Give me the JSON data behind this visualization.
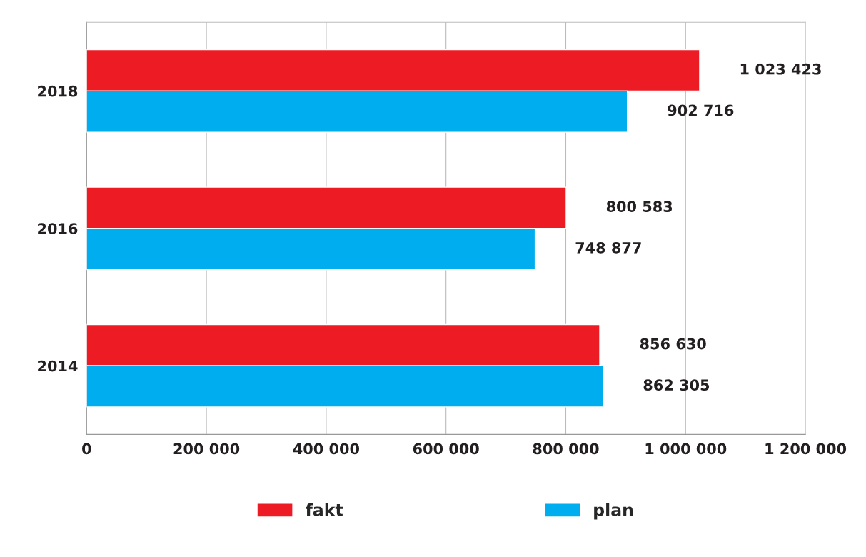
{
  "chart_data": {
    "type": "bar",
    "orientation": "horizontal",
    "categories": [
      "2018",
      "2016",
      "2014"
    ],
    "series": [
      {
        "name": "fakt",
        "color": "#ed1c24",
        "values": [
          1023423,
          800583,
          856630
        ],
        "value_labels": [
          "1 023 423",
          "800 583",
          "856 630"
        ]
      },
      {
        "name": "plan",
        "color": "#00aeef",
        "values": [
          902716,
          748877,
          862305
        ],
        "value_labels": [
          "902 716",
          "748 877",
          "862 305"
        ]
      }
    ],
    "xlim": [
      0,
      1200000
    ],
    "xticks": [
      0,
      {
        "value": 200000,
        "label": "200 000"
      },
      {
        "value": 400000,
        "label": "400 000"
      },
      {
        "value": 600000,
        "label": "600 000"
      },
      {
        "value": 800000,
        "label": "800 000"
      },
      {
        "value": 1000000,
        "label": "1 000 000"
      },
      {
        "value": 1200000,
        "label": "1 200 000"
      }
    ],
    "grid": "x",
    "legend": "bottom"
  }
}
